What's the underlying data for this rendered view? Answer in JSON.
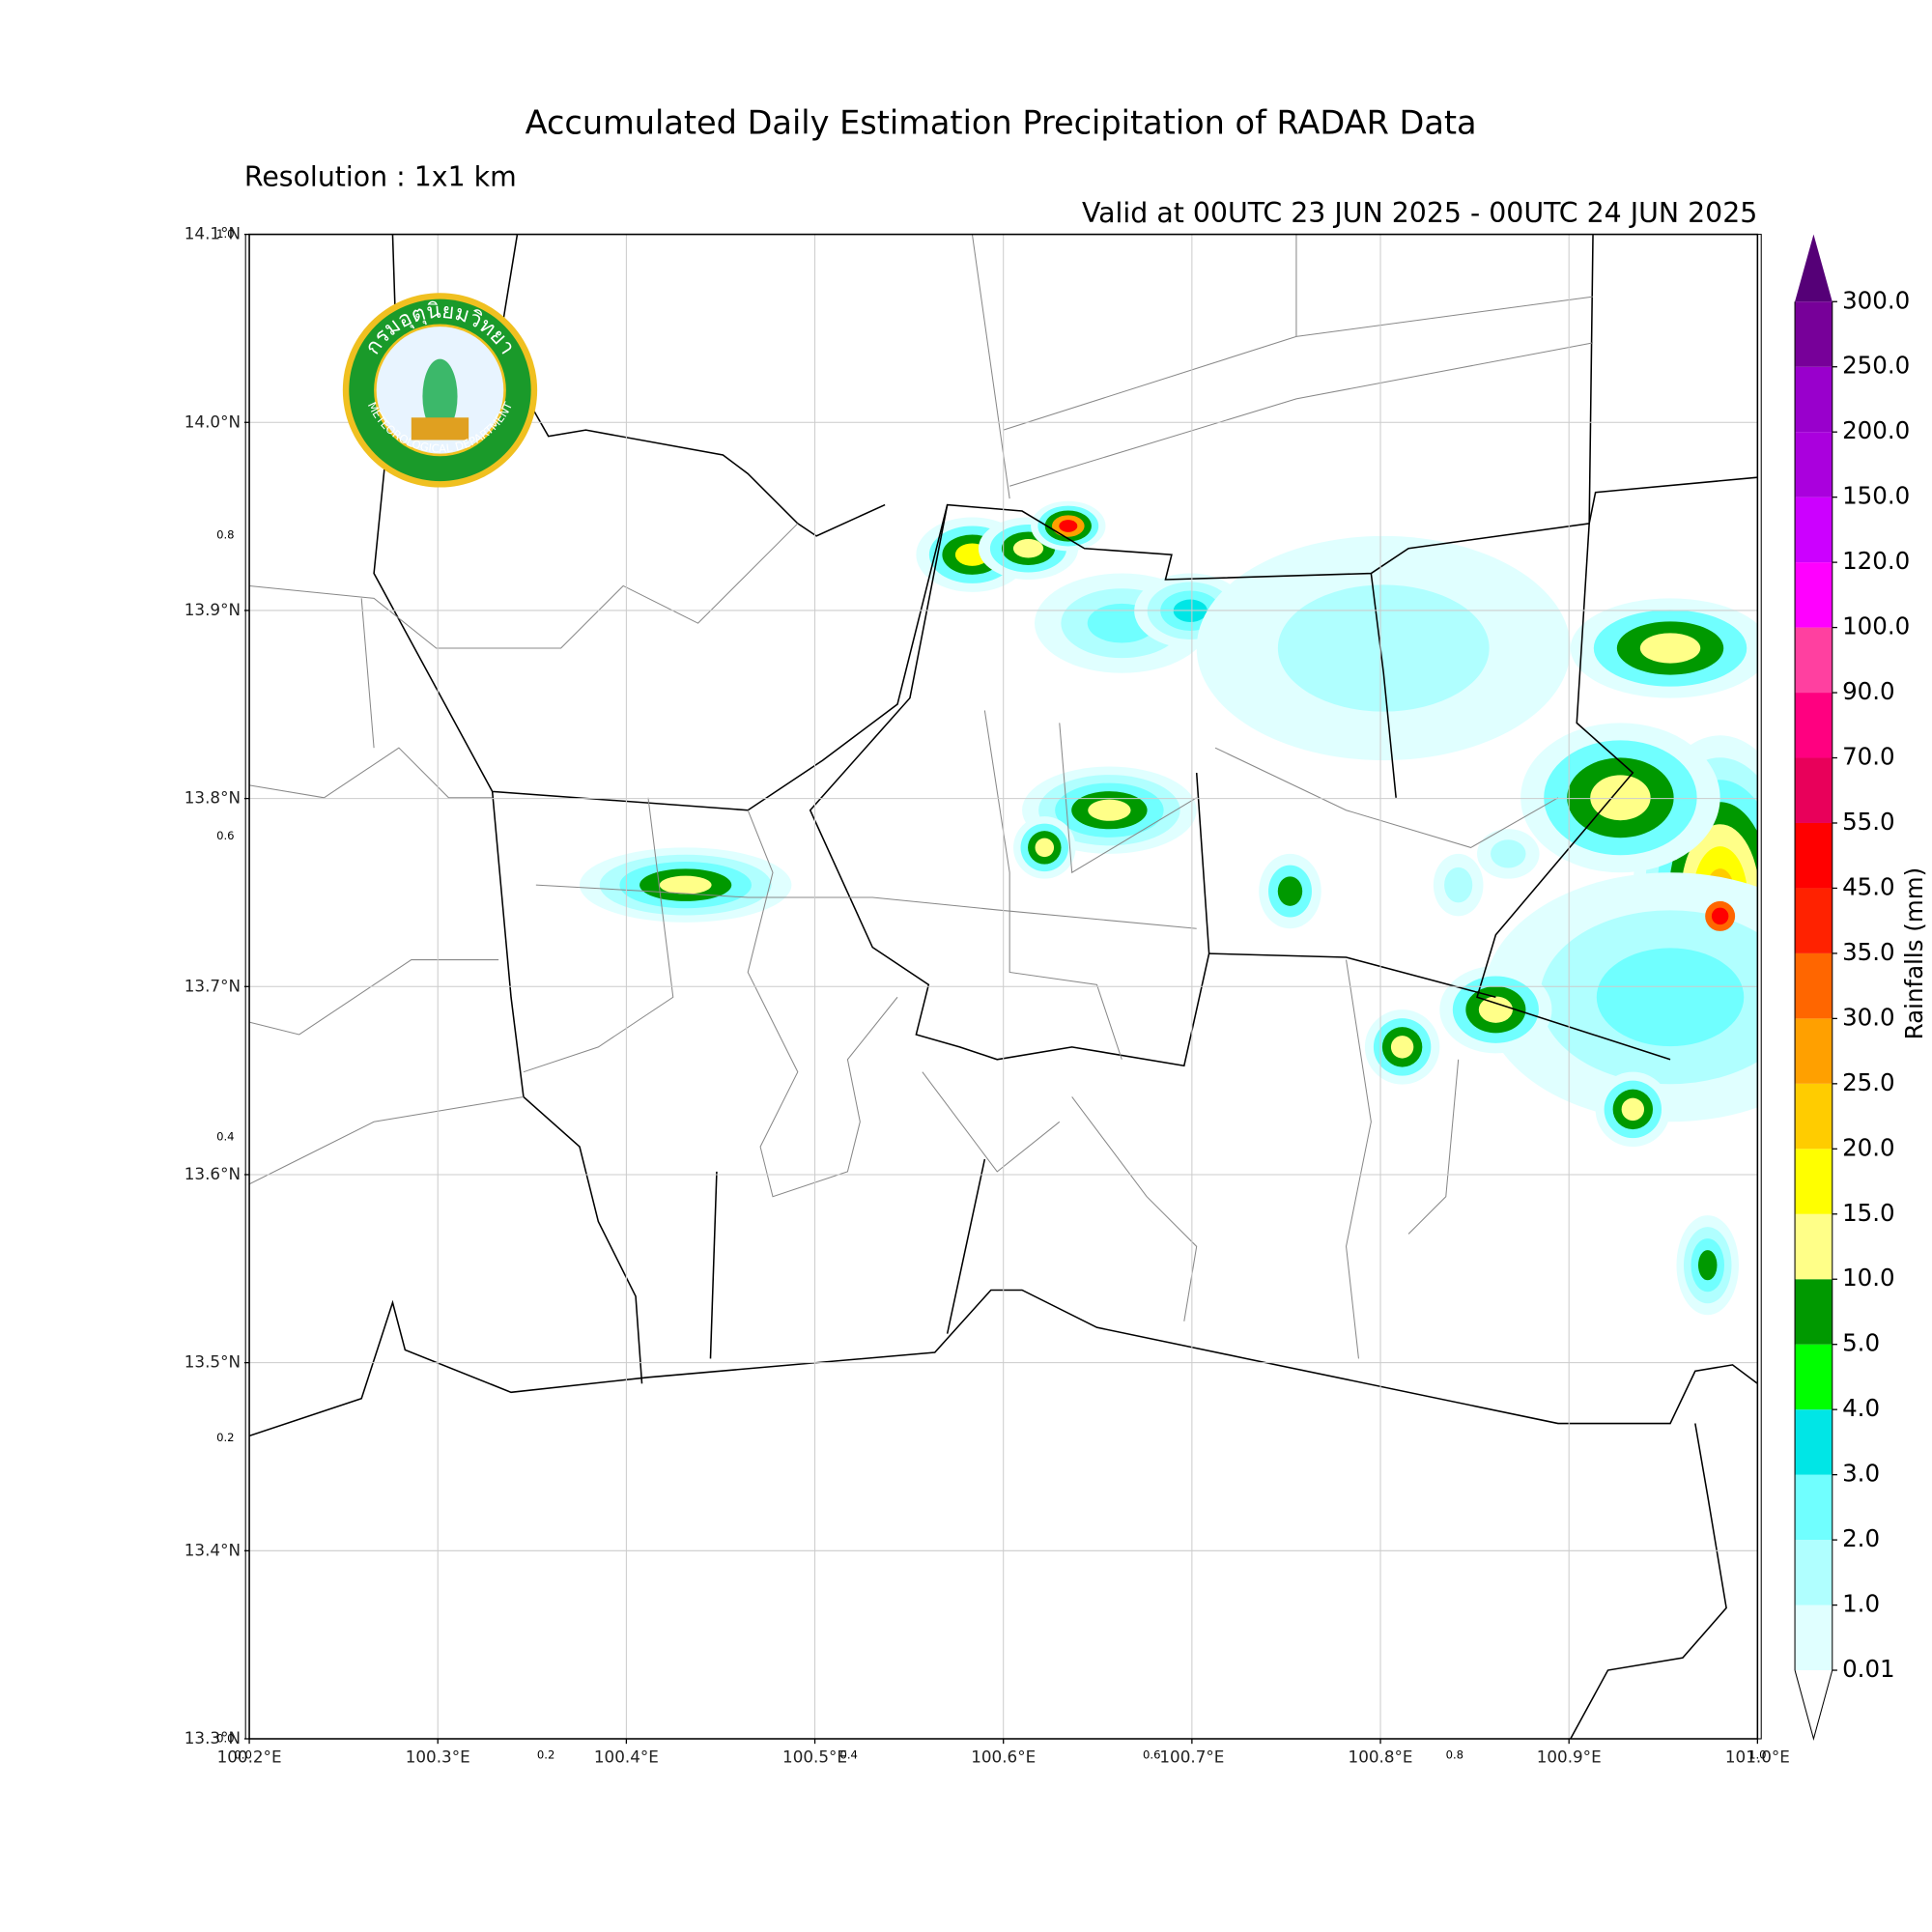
{
  "chart_data": {
    "type": "map",
    "title": "Accumulated Daily Estimation Precipitation of RADAR Data",
    "subtitle": "Resolution : 1x1 km",
    "valid": "Valid at 00UTC 23 JUN 2025 - 00UTC 24 JUN 2025",
    "logo": {
      "top": "กรมอุตุนิยมวิทยา",
      "bottom": "METEOROLOGICAL DEPARTMENT"
    },
    "xlim": [
      100.2,
      101.0
    ],
    "ylim": [
      13.3,
      14.1
    ],
    "grid": true,
    "xticks": [
      {
        "value": 100.2,
        "label": "100.2°E"
      },
      {
        "value": 100.3,
        "label": "100.3°E"
      },
      {
        "value": 100.4,
        "label": "100.4°E"
      },
      {
        "value": 100.5,
        "label": "100.5°E"
      },
      {
        "value": 100.6,
        "label": "100.6°E"
      },
      {
        "value": 100.7,
        "label": "100.7°E"
      },
      {
        "value": 100.8,
        "label": "100.8°E"
      },
      {
        "value": 100.9,
        "label": "100.9°E"
      },
      {
        "value": 101.0,
        "label": "101.0°E"
      }
    ],
    "yticks": [
      {
        "value": 13.3,
        "label": "13.3°N"
      },
      {
        "value": 13.4,
        "label": "13.4°N"
      },
      {
        "value": 13.5,
        "label": "13.5°N"
      },
      {
        "value": 13.6,
        "label": "13.6°N"
      },
      {
        "value": 13.7,
        "label": "13.7°N"
      },
      {
        "value": 13.8,
        "label": "13.8°N"
      },
      {
        "value": 13.9,
        "label": "13.9°N"
      },
      {
        "value": 14.0,
        "label": "14.0°N"
      },
      {
        "value": 14.1,
        "label": "14.1°N"
      }
    ],
    "frame_xticks": [
      {
        "value": 0,
        "label": "0.0"
      },
      0.2,
      0.4,
      0.6,
      0.8,
      {
        "value": 1,
        "label": "1.0"
      }
    ],
    "frame_yticks": [
      {
        "value": 0,
        "label": "0.0"
      },
      0.2,
      0.4,
      0.6,
      0.8,
      {
        "value": 1,
        "label": "1.0"
      }
    ],
    "colorbar": {
      "label": "Rainfalls (mm)",
      "levels": [
        0.01,
        {
          "value": 1,
          "label": "1.0"
        },
        {
          "value": 2,
          "label": "2.0"
        },
        {
          "value": 3,
          "label": "3.0"
        },
        {
          "value": 4,
          "label": "4.0"
        },
        {
          "value": 5,
          "label": "5.0"
        },
        {
          "value": 10,
          "label": "10.0"
        },
        {
          "value": 15,
          "label": "15.0"
        },
        {
          "value": 20,
          "label": "20.0"
        },
        {
          "value": 25,
          "label": "25.0"
        },
        {
          "value": 30,
          "label": "30.0"
        },
        {
          "value": 35,
          "label": "35.0"
        },
        {
          "value": 45,
          "label": "45.0"
        },
        {
          "value": 55,
          "label": "55.0"
        },
        {
          "value": 70,
          "label": "70.0"
        },
        {
          "value": 90,
          "label": "90.0"
        },
        {
          "value": 100,
          "label": "100.0"
        },
        {
          "value": 120,
          "label": "120.0"
        },
        {
          "value": 150,
          "label": "150.0"
        },
        {
          "value": 200,
          "label": "200.0"
        },
        {
          "value": 250,
          "label": "250.0"
        },
        {
          "value": 300,
          "label": "300.0"
        }
      ],
      "colors": [
        "#e0ffff",
        "#b0ffff",
        "#70ffff",
        "#00e6e6",
        "#00ff00",
        "#009900",
        "#ffff88",
        "#ffff00",
        "#ffcc00",
        "#ffa000",
        "#ff6600",
        "#ff2200",
        "#ff0000",
        "#e8005a",
        "#ff0080",
        "#ff40a0",
        "#ff00ff",
        "#cc00ff",
        "#aa00dd",
        "#9900cc",
        "#770099"
      ],
      "extend_color": "#550077"
    }
  }
}
